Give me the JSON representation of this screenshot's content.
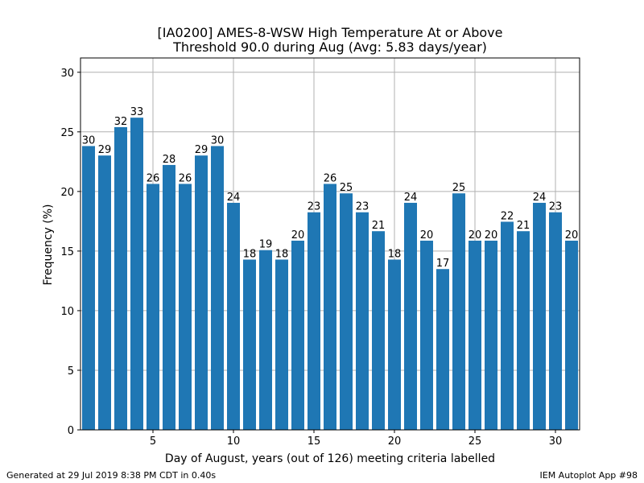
{
  "chart_data": {
    "type": "bar",
    "title_line1": "[IA0200] AMES-8-WSW High Temperature At or Above",
    "title_line2": "Threshold 90.0 during Aug (Avg: 5.83 days/year)",
    "xlabel": "Day of August, years (out of 126) meeting criteria labelled",
    "ylabel": "Frequency (%)",
    "xlim": [
      0.5,
      31.5
    ],
    "ylim": [
      0,
      31.2
    ],
    "xticks": [
      5,
      10,
      15,
      20,
      25,
      30
    ],
    "yticks": [
      0,
      5,
      10,
      15,
      20,
      25,
      30
    ],
    "grid": true,
    "bar_color": "#1f77b4",
    "total_years": 126,
    "days": [
      1,
      2,
      3,
      4,
      5,
      6,
      7,
      8,
      9,
      10,
      11,
      12,
      13,
      14,
      15,
      16,
      17,
      18,
      19,
      20,
      21,
      22,
      23,
      24,
      25,
      26,
      27,
      28,
      29,
      30,
      31
    ],
    "counts": [
      30,
      29,
      32,
      33,
      26,
      28,
      26,
      29,
      30,
      24,
      18,
      19,
      18,
      20,
      23,
      26,
      25,
      23,
      21,
      18,
      24,
      20,
      17,
      25,
      20,
      20,
      22,
      21,
      24,
      23,
      20
    ]
  },
  "footer": {
    "generated": "Generated at 29 Jul 2019 8:38 PM CDT in 0.40s",
    "app": "IEM Autoplot App #98"
  }
}
